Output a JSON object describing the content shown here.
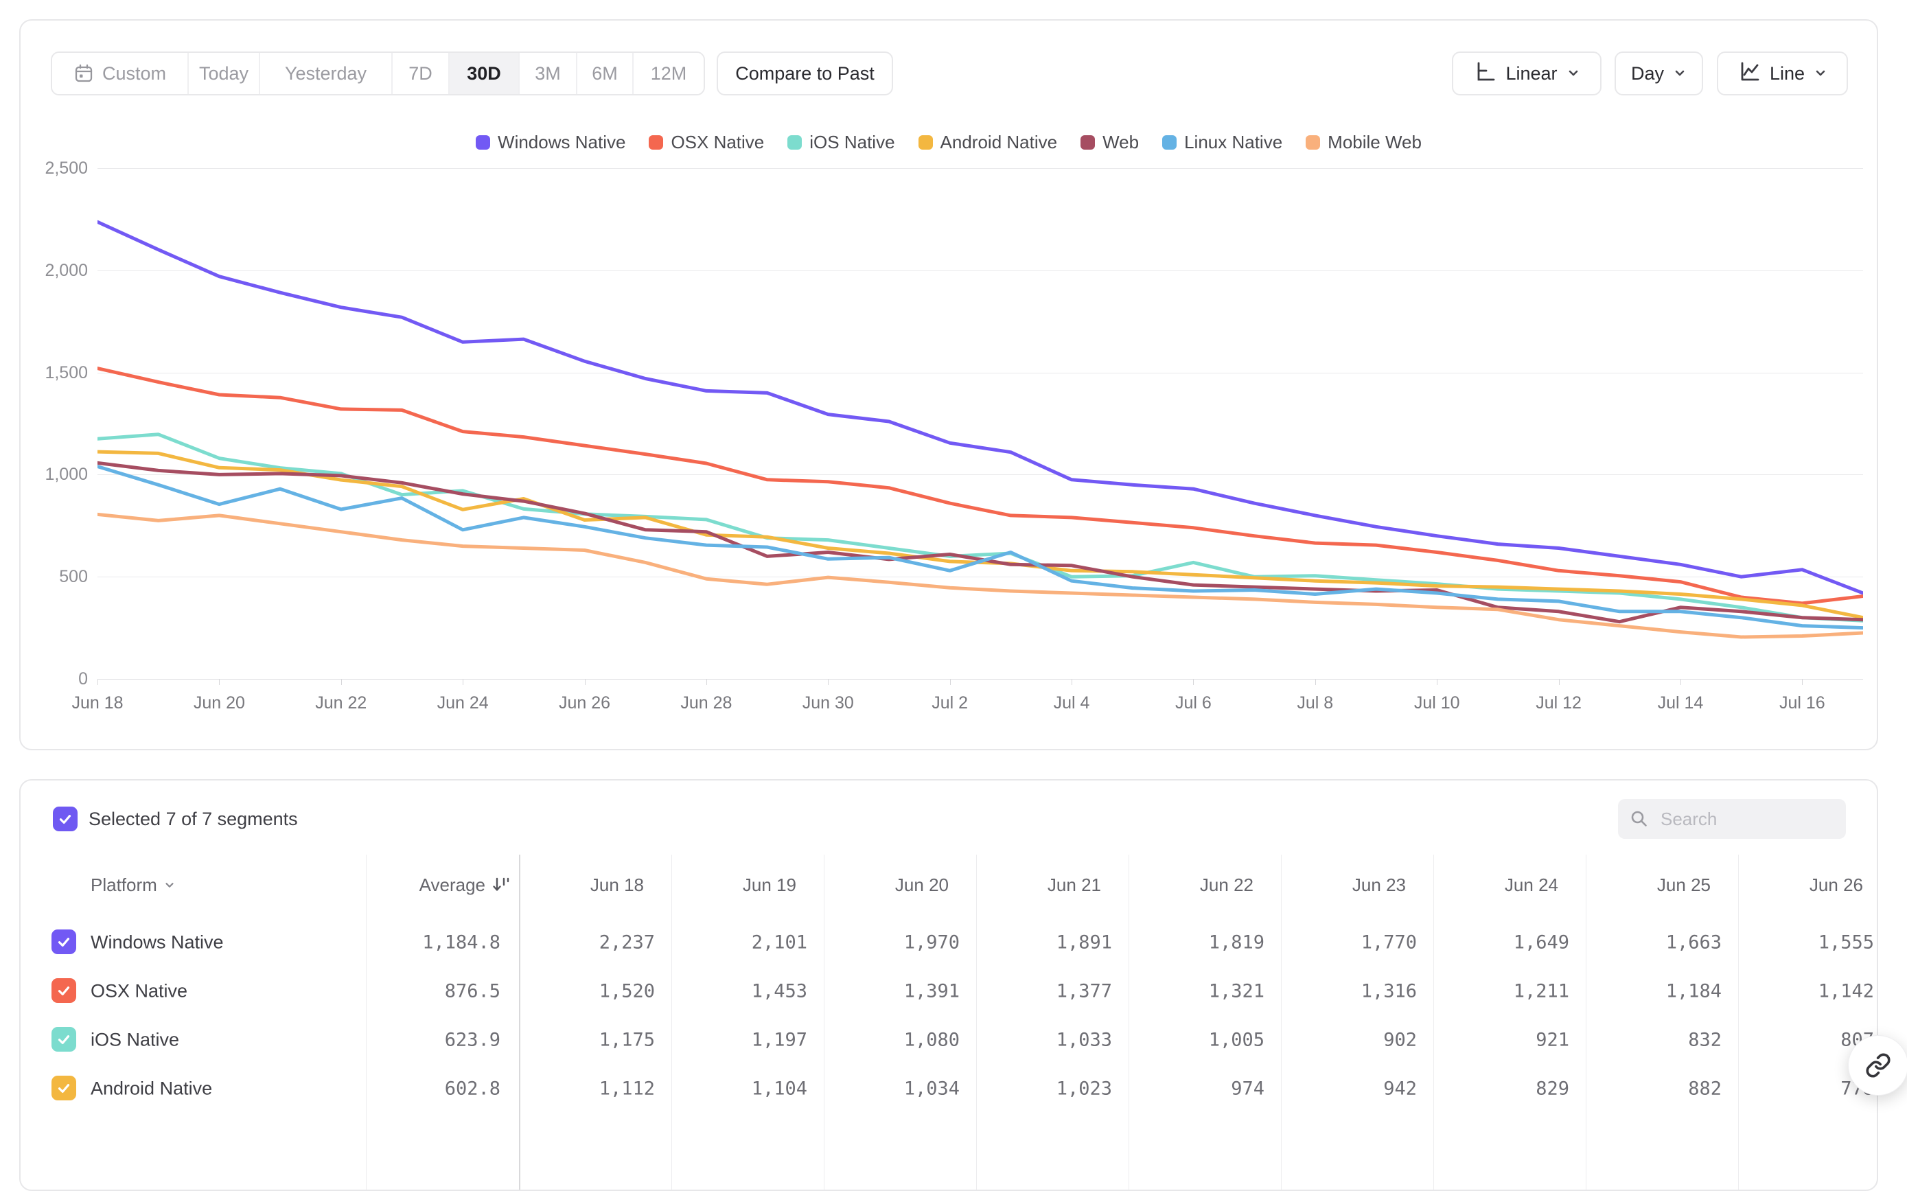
{
  "toolbar": {
    "ranges": [
      "Custom",
      "Today",
      "Yesterday",
      "7D",
      "30D",
      "3M",
      "6M",
      "12M"
    ],
    "selected_range": "30D",
    "compare_label": "Compare to Past",
    "scale_label": "Linear",
    "interval_label": "Day",
    "chart_type_label": "Line"
  },
  "colors": {
    "accent": "#6F59F2",
    "grid": "#e9e9eb"
  },
  "chart_data": {
    "type": "line",
    "title": "",
    "xlabel": "",
    "ylabel": "",
    "ylim": [
      0,
      2500
    ],
    "grid": "horizontal",
    "legend_position": "top",
    "y_ticks": [
      0,
      500,
      1000,
      1500,
      2000,
      2500
    ],
    "y_tick_labels": [
      "0",
      "500",
      "1,000",
      "1,500",
      "2,000",
      "2,500"
    ],
    "x": [
      "Jun 18",
      "Jun 19",
      "Jun 20",
      "Jun 21",
      "Jun 22",
      "Jun 23",
      "Jun 24",
      "Jun 25",
      "Jun 26",
      "Jun 27",
      "Jun 28",
      "Jun 29",
      "Jun 30",
      "Jul 1",
      "Jul 2",
      "Jul 3",
      "Jul 4",
      "Jul 5",
      "Jul 6",
      "Jul 7",
      "Jul 8",
      "Jul 9",
      "Jul 10",
      "Jul 11",
      "Jul 12",
      "Jul 13",
      "Jul 14",
      "Jul 15",
      "Jul 16",
      "Jul 17"
    ],
    "x_tick_labels": [
      "Jun 18",
      "Jun 20",
      "Jun 22",
      "Jun 24",
      "Jun 26",
      "Jun 28",
      "Jun 30",
      "Jul 2",
      "Jul 4",
      "Jul 6",
      "Jul 8",
      "Jul 10",
      "Jul 12",
      "Jul 14",
      "Jul 16"
    ],
    "series": [
      {
        "name": "Windows Native",
        "color": "#7259F4",
        "values": [
          2237,
          2101,
          1970,
          1891,
          1819,
          1770,
          1649,
          1663,
          1555,
          1470,
          1410,
          1400,
          1295,
          1260,
          1155,
          1110,
          975,
          950,
          930,
          860,
          800,
          745,
          700,
          660,
          640,
          600,
          560,
          500,
          535,
          420
        ]
      },
      {
        "name": "OSX Native",
        "color": "#F4674F",
        "values": [
          1520,
          1453,
          1391,
          1377,
          1321,
          1316,
          1211,
          1184,
          1142,
          1100,
          1055,
          975,
          965,
          935,
          860,
          800,
          790,
          765,
          740,
          700,
          665,
          655,
          620,
          580,
          530,
          505,
          475,
          400,
          370,
          405
        ]
      },
      {
        "name": "iOS Native",
        "color": "#7CDCCE",
        "values": [
          1175,
          1197,
          1080,
          1033,
          1005,
          902,
          921,
          832,
          807,
          795,
          780,
          690,
          680,
          640,
          600,
          615,
          500,
          505,
          570,
          500,
          505,
          485,
          465,
          440,
          430,
          420,
          390,
          350,
          300,
          285
        ]
      },
      {
        "name": "Android Native",
        "color": "#F3B740",
        "values": [
          1112,
          1104,
          1034,
          1023,
          974,
          942,
          829,
          882,
          778,
          790,
          705,
          695,
          640,
          615,
          575,
          565,
          530,
          525,
          510,
          495,
          480,
          470,
          455,
          450,
          440,
          430,
          415,
          390,
          360,
          300
        ]
      },
      {
        "name": "Web",
        "color": "#A64D61",
        "values": [
          1057,
          1020,
          1000,
          1005,
          995,
          960,
          905,
          870,
          810,
          730,
          720,
          600,
          620,
          585,
          610,
          560,
          555,
          500,
          460,
          450,
          440,
          430,
          435,
          350,
          330,
          280,
          350,
          330,
          300,
          290
        ]
      },
      {
        "name": "Linux Native",
        "color": "#64B2E4",
        "values": [
          1040,
          950,
          855,
          930,
          830,
          885,
          730,
          790,
          745,
          690,
          655,
          645,
          587,
          594,
          530,
          620,
          480,
          445,
          430,
          435,
          415,
          440,
          420,
          390,
          380,
          330,
          330,
          300,
          260,
          250
        ]
      },
      {
        "name": "Mobile Web",
        "color": "#F9B07C",
        "values": [
          805,
          775,
          800,
          760,
          720,
          680,
          650,
          640,
          630,
          570,
          490,
          463,
          497,
          473,
          446,
          430,
          420,
          410,
          400,
          390,
          375,
          365,
          350,
          340,
          290,
          260,
          230,
          205,
          210,
          225
        ]
      }
    ]
  },
  "table": {
    "summary": "Selected 7 of 7 segments",
    "search_placeholder": "Search",
    "platform_header": "Platform",
    "average_header": "Average",
    "date_headers": [
      "Jun 18",
      "Jun 19",
      "Jun 20",
      "Jun 21",
      "Jun 22",
      "Jun 23",
      "Jun 24",
      "Jun 25",
      "Jun 26"
    ],
    "rows": [
      {
        "platform": "Windows Native",
        "color": "#7259F4",
        "average": "1,184.8",
        "values": [
          "2,237",
          "2,101",
          "1,970",
          "1,891",
          "1,819",
          "1,770",
          "1,649",
          "1,663",
          "1,555"
        ]
      },
      {
        "platform": "OSX Native",
        "color": "#F4674F",
        "average": "876.5",
        "values": [
          "1,520",
          "1,453",
          "1,391",
          "1,377",
          "1,321",
          "1,316",
          "1,211",
          "1,184",
          "1,142"
        ]
      },
      {
        "platform": "iOS Native",
        "color": "#7CDCCE",
        "average": "623.9",
        "values": [
          "1,175",
          "1,197",
          "1,080",
          "1,033",
          "1,005",
          "902",
          "921",
          "832",
          "807"
        ]
      },
      {
        "platform": "Android Native",
        "color": "#F3B740",
        "average": "602.8",
        "values": [
          "1,112",
          "1,104",
          "1,034",
          "1,023",
          "974",
          "942",
          "829",
          "882",
          "778"
        ]
      }
    ]
  },
  "fab": {
    "icon": "link-icon"
  }
}
